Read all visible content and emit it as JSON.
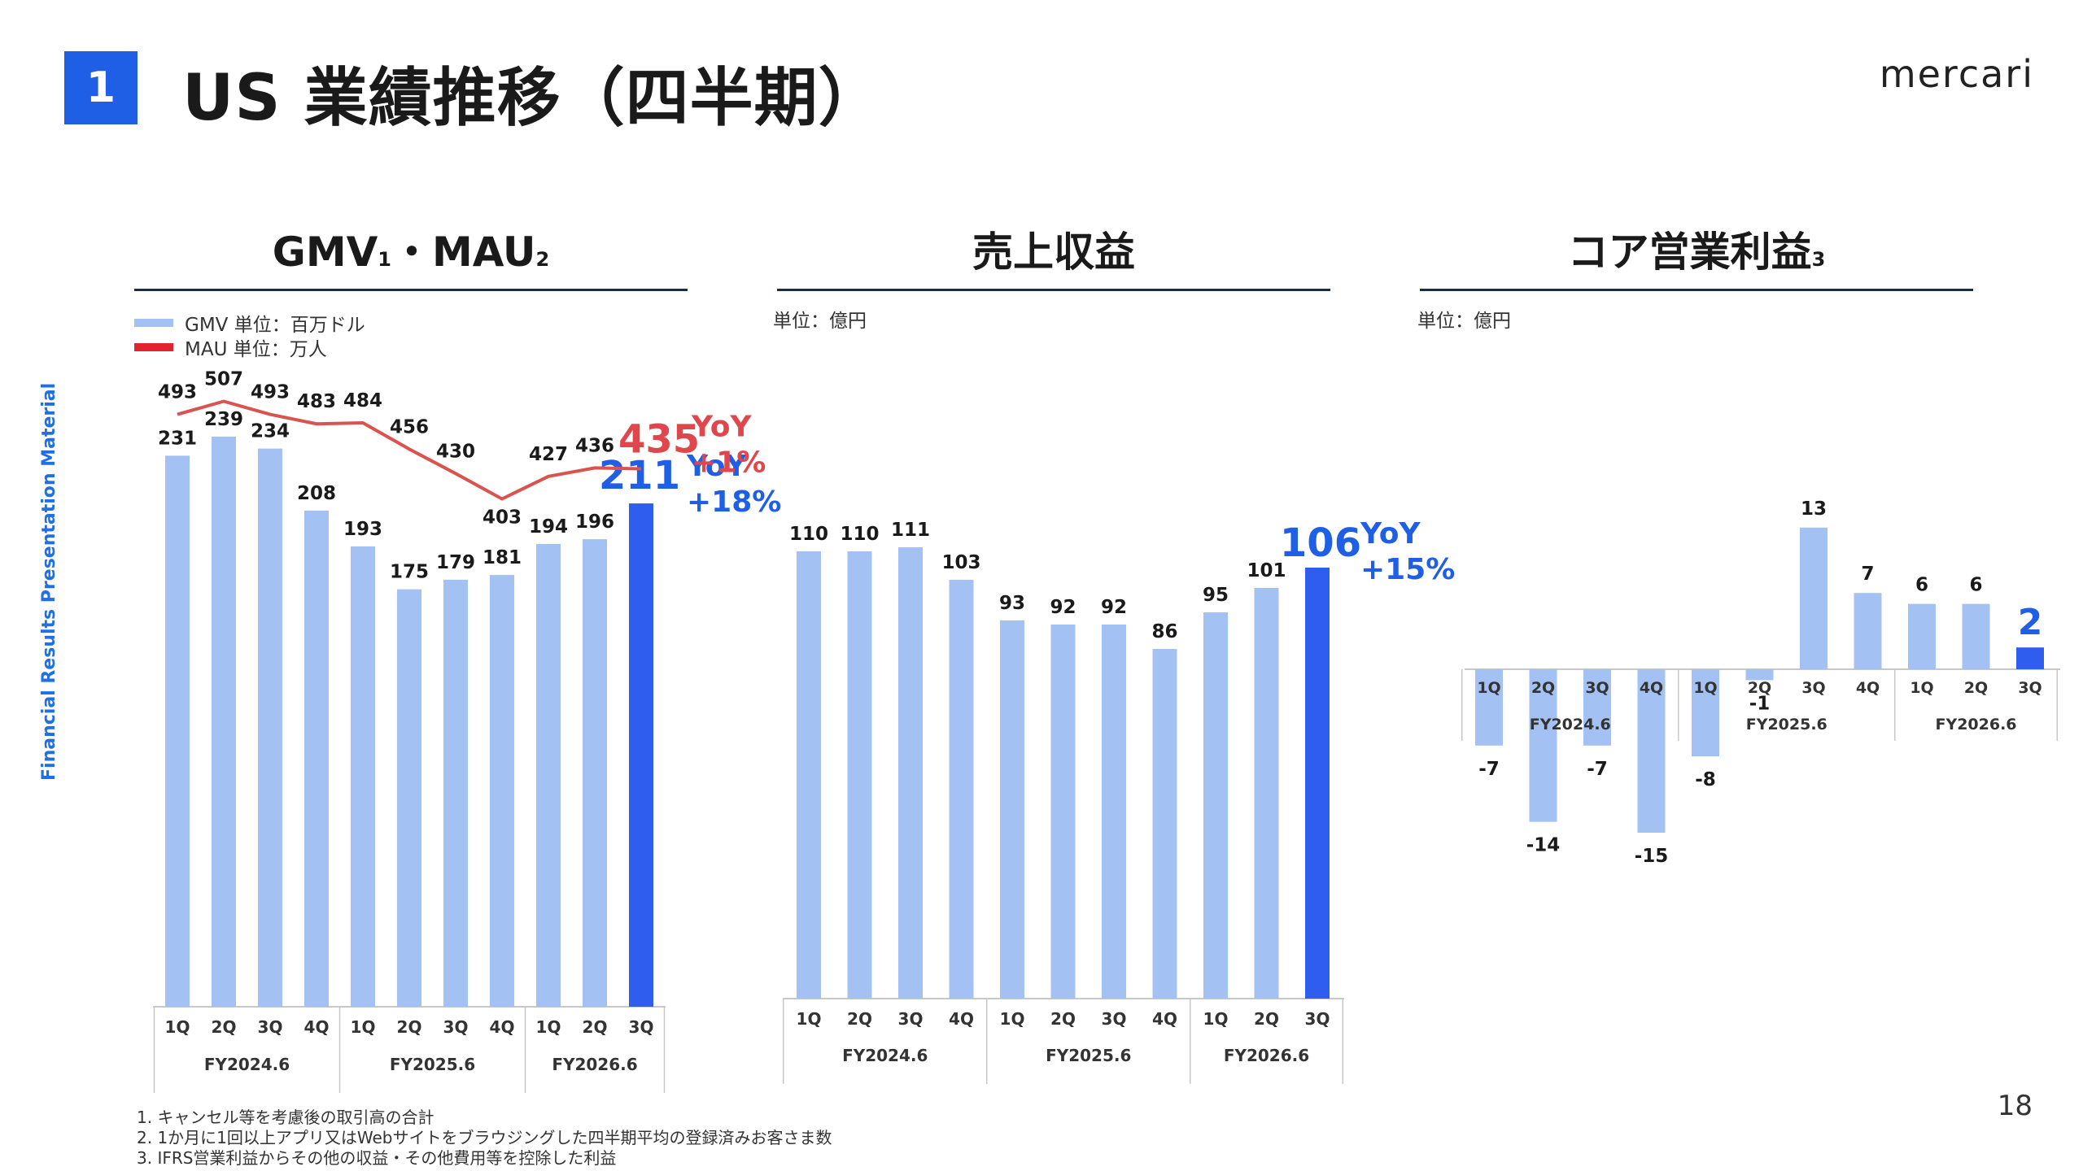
{
  "header": {
    "badge": "1",
    "title": "US 業績推移（四半期）",
    "logo": "mercari",
    "side_label": "Financial Results Presentation Material"
  },
  "panels": {
    "gmv": {
      "title_main_1": "GMV",
      "title_sub_1": "1",
      "title_sep": "・",
      "title_main_2": "MAU",
      "title_sub_2": "2",
      "legend_gmv": "GMV 単位：百万ドル",
      "legend_mau": "MAU 単位：万人"
    },
    "revenue": {
      "title": "売上収益",
      "unit": "単位：億円"
    },
    "core": {
      "title_main": "コア営業利益",
      "title_sub": "3",
      "unit": "単位：億円"
    }
  },
  "colors": {
    "bar_light": "#a4c1f4",
    "bar_highlight": "#2f5ded",
    "line_mau": "#d9534f",
    "yoy_blue": "#1f5fe6",
    "yoy_red": "#e0474c",
    "axis": "#c8c8c8"
  },
  "chart_data": [
    {
      "id": "gmv",
      "type": "bar",
      "categories": [
        "1Q",
        "2Q",
        "3Q",
        "4Q",
        "1Q",
        "2Q",
        "3Q",
        "4Q",
        "1Q",
        "2Q",
        "3Q"
      ],
      "groups": [
        "FY2024.6",
        "FY2025.6",
        "FY2026.6"
      ],
      "series": [
        {
          "name": "GMV",
          "values": [
            231,
            239,
            234,
            208,
            193,
            175,
            179,
            181,
            194,
            196,
            211
          ]
        }
      ],
      "ylim": [
        0,
        300
      ],
      "highlight_last": true,
      "callout": {
        "value": "211",
        "yoy": "YoY",
        "change": "+18%"
      }
    },
    {
      "id": "mau",
      "type": "line",
      "categories": [
        "1Q",
        "2Q",
        "3Q",
        "4Q",
        "1Q",
        "2Q",
        "3Q",
        "4Q",
        "1Q",
        "2Q",
        "3Q"
      ],
      "series": [
        {
          "name": "MAU",
          "values": [
            493,
            507,
            493,
            483,
            484,
            456,
            430,
            403,
            427,
            436,
            435
          ]
        }
      ],
      "ylim": [
        380,
        510
      ],
      "callout": {
        "value": "435",
        "yoy": "YoY",
        "change": "+1%"
      }
    },
    {
      "id": "revenue",
      "type": "bar",
      "categories": [
        "1Q",
        "2Q",
        "3Q",
        "4Q",
        "1Q",
        "2Q",
        "3Q",
        "4Q",
        "1Q",
        "2Q",
        "3Q"
      ],
      "groups": [
        "FY2024.6",
        "FY2025.6",
        "FY2026.6"
      ],
      "values": [
        110,
        110,
        111,
        103,
        93,
        92,
        92,
        86,
        95,
        101,
        106
      ],
      "ylim": [
        0,
        120
      ],
      "highlight_last": true,
      "callout": {
        "value": "106",
        "yoy": "YoY",
        "change": "+15%"
      }
    },
    {
      "id": "core",
      "type": "bar",
      "categories": [
        "1Q",
        "2Q",
        "3Q",
        "4Q",
        "1Q",
        "2Q",
        "3Q",
        "4Q",
        "1Q",
        "2Q",
        "3Q"
      ],
      "groups": [
        "FY2024.6",
        "FY2025.6",
        "FY2026.6"
      ],
      "values": [
        -7,
        -14,
        -7,
        -15,
        -8,
        -1,
        13,
        7,
        6,
        6,
        2
      ],
      "ylim": [
        -16,
        14
      ],
      "highlight_last": true
    }
  ],
  "footnotes": [
    "1. キャンセル等を考慮後の取引高の合計",
    "2. 1か月に1回以上アプリ又はWebサイトをブラウジングした四半期平均の登録済みお客さま数",
    "3. IFRS営業利益からその他の収益・その他費用等を控除した利益"
  ],
  "page_number": "18"
}
